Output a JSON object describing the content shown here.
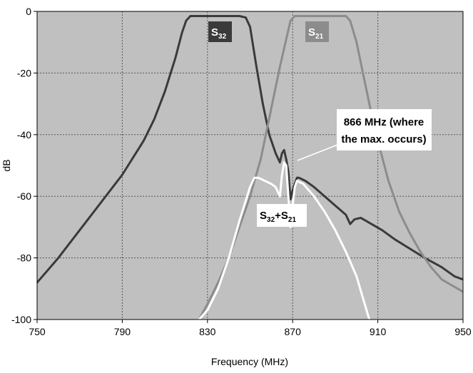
{
  "chart_data": {
    "type": "line",
    "title": "",
    "xlabel": "Frequency (MHz)",
    "ylabel": "dB",
    "xlim": [
      750,
      950
    ],
    "ylim": [
      -100,
      0
    ],
    "x_ticks": [
      750,
      790,
      830,
      870,
      910,
      950
    ],
    "y_ticks": [
      0,
      -20,
      -40,
      -60,
      -80,
      -100
    ],
    "x_tick_labels": [
      "750",
      "790",
      "830",
      "870",
      "910",
      "950"
    ],
    "y_tick_labels": [
      "0",
      "-20",
      "-40",
      "-60",
      "-80",
      "-100"
    ],
    "grid": true,
    "background_color": "#c0c0c0",
    "series": [
      {
        "name": "S32",
        "color": "#3a3a3a",
        "points": [
          [
            750,
            -88
          ],
          [
            760,
            -80
          ],
          [
            770,
            -71
          ],
          [
            780,
            -62
          ],
          [
            790,
            -53
          ],
          [
            800,
            -42
          ],
          [
            805,
            -35
          ],
          [
            810,
            -26
          ],
          [
            815,
            -15
          ],
          [
            818,
            -7
          ],
          [
            820,
            -3
          ],
          [
            822,
            -1.5
          ],
          [
            825,
            -1.5
          ],
          [
            830,
            -1.5
          ],
          [
            835,
            -1.5
          ],
          [
            840,
            -1.5
          ],
          [
            845,
            -1.5
          ],
          [
            848,
            -2
          ],
          [
            850,
            -5
          ],
          [
            853,
            -18
          ],
          [
            856,
            -30
          ],
          [
            859,
            -40
          ],
          [
            862,
            -46
          ],
          [
            864,
            -49
          ],
          [
            865,
            -46
          ],
          [
            866,
            -45
          ],
          [
            867,
            -48
          ],
          [
            868,
            -52
          ],
          [
            869,
            -61
          ],
          [
            870,
            -58
          ],
          [
            871,
            -56
          ],
          [
            872,
            -54
          ],
          [
            873,
            -54
          ],
          [
            876,
            -55
          ],
          [
            880,
            -57
          ],
          [
            885,
            -60
          ],
          [
            890,
            -63
          ],
          [
            895,
            -66
          ],
          [
            897,
            -69
          ],
          [
            899,
            -67.5
          ],
          [
            902,
            -67
          ],
          [
            907,
            -69
          ],
          [
            912,
            -71
          ],
          [
            918,
            -74
          ],
          [
            925,
            -77
          ],
          [
            932,
            -80
          ],
          [
            940,
            -83
          ],
          [
            946,
            -86
          ],
          [
            950,
            -87
          ]
        ]
      },
      {
        "name": "S21",
        "color": "#8c8c8c",
        "points": [
          [
            826,
            -100
          ],
          [
            830,
            -95
          ],
          [
            835,
            -88
          ],
          [
            840,
            -80
          ],
          [
            845,
            -70
          ],
          [
            850,
            -60
          ],
          [
            855,
            -48
          ],
          [
            858,
            -38
          ],
          [
            861,
            -28
          ],
          [
            864,
            -18
          ],
          [
            867,
            -9
          ],
          [
            869,
            -3
          ],
          [
            871,
            -1.5
          ],
          [
            875,
            -1.5
          ],
          [
            880,
            -1.5
          ],
          [
            885,
            -1.5
          ],
          [
            890,
            -1.5
          ],
          [
            895,
            -1.5
          ],
          [
            897,
            -3
          ],
          [
            900,
            -10
          ],
          [
            903,
            -20
          ],
          [
            906,
            -30
          ],
          [
            910,
            -42
          ],
          [
            915,
            -55
          ],
          [
            920,
            -65
          ],
          [
            925,
            -72
          ],
          [
            930,
            -78
          ],
          [
            935,
            -83
          ],
          [
            940,
            -87
          ],
          [
            945,
            -89
          ],
          [
            950,
            -91
          ]
        ]
      },
      {
        "name": "S32+S21",
        "color": "#ffffff",
        "points": [
          [
            826,
            -100
          ],
          [
            830,
            -97
          ],
          [
            835,
            -90
          ],
          [
            840,
            -80
          ],
          [
            845,
            -68
          ],
          [
            850,
            -57
          ],
          [
            852,
            -54
          ],
          [
            854,
            -54
          ],
          [
            857,
            -55
          ],
          [
            860,
            -56
          ],
          [
            862,
            -57
          ],
          [
            864,
            -60
          ],
          [
            865,
            -53
          ],
          [
            866,
            -49
          ],
          [
            867,
            -50
          ],
          [
            868,
            -60
          ],
          [
            869,
            -70
          ],
          [
            870,
            -63
          ],
          [
            871,
            -57
          ],
          [
            872,
            -55
          ],
          [
            875,
            -56
          ],
          [
            880,
            -60
          ],
          [
            885,
            -65
          ],
          [
            890,
            -71
          ],
          [
            895,
            -78
          ],
          [
            900,
            -86
          ],
          [
            903,
            -93
          ],
          [
            906,
            -100
          ]
        ]
      }
    ],
    "annotations": [
      {
        "text": "866 MHz (where",
        "text2": "the max. occurs)",
        "x": 866,
        "y": -48
      }
    ]
  },
  "labels": {
    "s32_main": "S",
    "s32_sub": "32",
    "s21_main": "S",
    "s21_sub": "21",
    "sum_s1": "S",
    "sum_sub1": "32",
    "sum_plus": "+S",
    "sum_sub2": "21"
  },
  "colors": {
    "grid": "#555555",
    "s32_label_bg": "#3a3a3a",
    "s21_label_bg": "#8c8c8c"
  }
}
